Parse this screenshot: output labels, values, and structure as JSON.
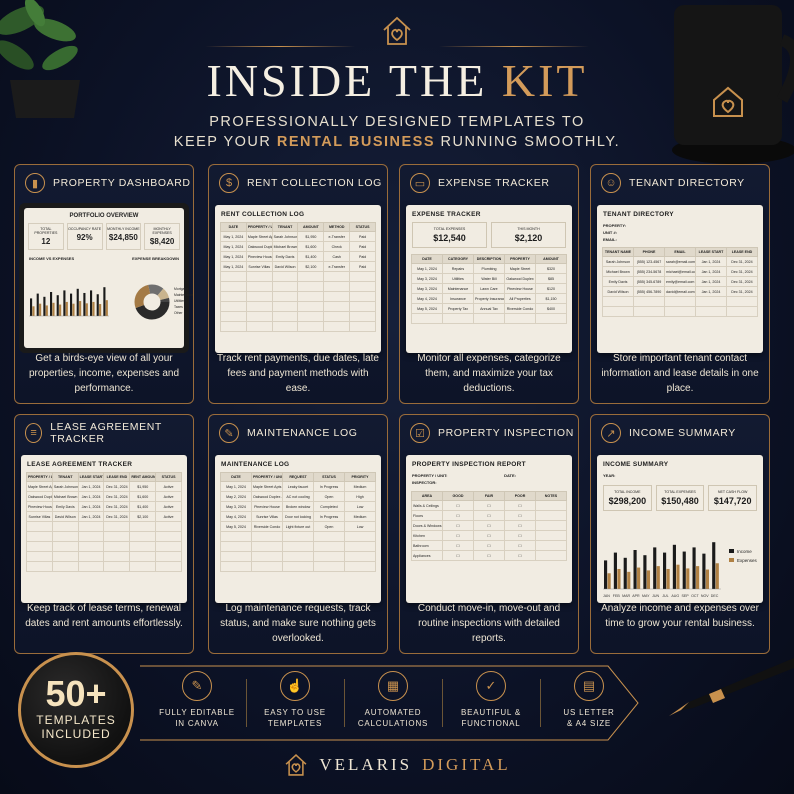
{
  "header": {
    "title_part1": "INSIDE THE ",
    "title_part2": "KIT",
    "subtitle_line1": "PROFESSIONALLY DESIGNED TEMPLATES TO",
    "subtitle_pre": "KEEP YOUR ",
    "subtitle_highlight": "RENTAL BUSINESS",
    "subtitle_post": " RUNNING SMOOTHLY."
  },
  "colors": {
    "background": "#0c1226",
    "accent": "#c8914e",
    "paper": "#f1ece2"
  },
  "cards": {
    "property_dashboard": {
      "title": "PROPERTY DASHBOARD",
      "icon": "bar-chart-icon",
      "paper_title": "PORTFOLIO OVERVIEW",
      "kpis": [
        {
          "label": "TOTAL PROPERTIES",
          "value": "12"
        },
        {
          "label": "OCCUPANCY RATE",
          "value": "92%"
        },
        {
          "label": "MONTHLY INCOME",
          "value": "$24,850"
        },
        {
          "label": "MONTHLY EXPENSES",
          "value": "$8,420"
        }
      ],
      "chart_left_title": "INCOME VS EXPENSES",
      "chart_right_title": "EXPENSE BREAKDOWN",
      "breakdown_legend": [
        "Mortgage",
        "Maintenance",
        "Utilities",
        "Taxes",
        "Other"
      ],
      "desc": "Get a birds-eye view of all your properties, income, expenses and performance."
    },
    "rent_collection": {
      "title": "RENT COLLECTION LOG",
      "icon": "dollar-icon",
      "paper_title": "RENT COLLECTION LOG",
      "columns": [
        "DATE",
        "PROPERTY / UNIT",
        "TENANT",
        "AMOUNT",
        "METHOD",
        "STATUS"
      ],
      "rows": [
        [
          "May 1, 2024",
          "Maple Street Apts - 1",
          "Sarah Johnson",
          "$1,950",
          "e-Transfer",
          "Paid"
        ],
        [
          "May 1, 2024",
          "Oakwood Duplex - 2",
          "Michael Brown",
          "$1,600",
          "Check",
          "Paid"
        ],
        [
          "May 1, 2024",
          "Pineview House",
          "Emily Davis",
          "$1,400",
          "Cash",
          "Paid"
        ],
        [
          "May 1, 2024",
          "Sunrise Villas",
          "David Wilson",
          "$2,100",
          "e-Transfer",
          "Paid"
        ]
      ],
      "desc": "Track rent payments, due dates, late fees and payment methods with ease."
    },
    "expense_tracker": {
      "title": "EXPENSE TRACKER",
      "icon": "folder-icon",
      "paper_title": "EXPENSE TRACKER",
      "total_label": "TOTAL EXPENSES",
      "total_value": "$12,540",
      "month_label": "THIS MONTH",
      "month_value": "$2,120",
      "columns": [
        "DATE",
        "CATEGORY",
        "DESCRIPTION",
        "PROPERTY",
        "AMOUNT"
      ],
      "rows": [
        [
          "May 1, 2024",
          "Repairs",
          "Plumbing",
          "Maple Street",
          "$320"
        ],
        [
          "May 3, 2024",
          "Utilities",
          "Water Bill",
          "Oakwood Duplex",
          "$85"
        ],
        [
          "May 3, 2024",
          "Maintenance",
          "Lawn Care",
          "Pineview House",
          "$120"
        ],
        [
          "May 4, 2024",
          "Insurance",
          "Property Insurance",
          "All Properties",
          "$1,150"
        ],
        [
          "May 5, 2024",
          "Property Tax",
          "Annual Tax",
          "Riverside Condo",
          "$400"
        ]
      ],
      "desc": "Monitor all expenses, categorize them, and maximize your tax deductions."
    },
    "tenant_directory": {
      "title": "TENANT DIRECTORY",
      "icon": "people-icon",
      "paper_title": "TENANT DIRECTORY",
      "fields": [
        "PROPERTY:",
        "UNIT #:",
        "EMAIL:"
      ],
      "columns": [
        "TENANT NAME",
        "PHONE",
        "EMAIL",
        "LEASE START",
        "LEASE END"
      ],
      "rows": [
        [
          "Sarah Johnson",
          "(555) 123-4567",
          "sarah@email.com",
          "Jan 1, 2024",
          "Dec 31, 2024"
        ],
        [
          "Michael Brown",
          "(555) 234-5678",
          "michael@email.com",
          "Jan 1, 2024",
          "Dec 31, 2024"
        ],
        [
          "Emily Davis",
          "(555) 345-6789",
          "emily@email.com",
          "Jan 1, 2024",
          "Dec 31, 2024"
        ],
        [
          "David Wilson",
          "(555) 456-7890",
          "david@email.com",
          "Jan 1, 2024",
          "Dec 31, 2024"
        ]
      ],
      "desc": "Store important tenant contact information and lease details in one place."
    },
    "lease_agreement": {
      "title": "LEASE AGREEMENT TRACKER",
      "icon": "document-icon",
      "paper_title": "LEASE AGREEMENT TRACKER",
      "columns": [
        "PROPERTY / UNIT",
        "TENANT",
        "LEASE START",
        "LEASE END",
        "RENT AMOUNT",
        "STATUS"
      ],
      "rows": [
        [
          "Maple Street Apts - 1",
          "Sarah Johnson",
          "Jan 1, 2024",
          "Dec 31, 2024",
          "$1,950",
          "Active"
        ],
        [
          "Oakwood Duplex - 2",
          "Michael Brown",
          "Jan 1, 2024",
          "Dec 31, 2024",
          "$1,600",
          "Active"
        ],
        [
          "Pineview House",
          "Emily Davis",
          "Jan 1, 2024",
          "Dec 31, 2024",
          "$1,400",
          "Active"
        ],
        [
          "Sunrise Villas",
          "David Wilson",
          "Jan 1, 2024",
          "Dec 31, 2024",
          "$2,100",
          "Active"
        ]
      ],
      "desc": "Keep track of lease terms, renewal dates and rent amounts effortlessly."
    },
    "maintenance_log": {
      "title": "MAINTENANCE LOG",
      "icon": "wrench-icon",
      "paper_title": "MAINTENANCE LOG",
      "columns": [
        "DATE",
        "PROPERTY / UNIT",
        "REQUEST",
        "STATUS",
        "PRIORITY"
      ],
      "rows": [
        [
          "May 1, 2024",
          "Maple Street Apts - 1",
          "Leaky faucet",
          "In Progress",
          "Medium"
        ],
        [
          "May 2, 2024",
          "Oakwood Duplex - 2",
          "AC not cooling",
          "Open",
          "High"
        ],
        [
          "May 3, 2024",
          "Pineview House",
          "Broken window",
          "Completed",
          "Low"
        ],
        [
          "May 4, 2024",
          "Sunrise Villas",
          "Door not locking",
          "In Progress",
          "Medium"
        ],
        [
          "May 5, 2024",
          "Riverside Condo",
          "Light fixture out",
          "Open",
          "Low"
        ]
      ],
      "desc": "Log maintenance requests, track status, and make sure nothing gets overlooked."
    },
    "property_inspection": {
      "title": "PROPERTY INSPECTION",
      "icon": "clipboard-icon",
      "paper_title": "PROPERTY INSPECTION REPORT",
      "field_property": "PROPERTY / UNIT:",
      "field_date": "DATE:",
      "field_inspector": "INSPECTOR:",
      "columns": [
        "AREA",
        "GOOD",
        "FAIR",
        "POOR",
        "NOTES"
      ],
      "areas": [
        "Walls & Ceilings",
        "Floors",
        "Doors & Windows",
        "Kitchen",
        "Bathroom",
        "Appliances"
      ],
      "desc": "Conduct move-in, move-out and routine inspections with detailed reports."
    },
    "income_summary": {
      "title": "INCOME SUMMARY",
      "icon": "trend-icon",
      "paper_title": "INCOME SUMMARY",
      "year_label": "YEAR:",
      "boxes": [
        {
          "label": "TOTAL INCOME",
          "value": "$298,200"
        },
        {
          "label": "TOTAL EXPENSES",
          "value": "$150,480"
        },
        {
          "label": "NET CASH FLOW",
          "value": "$147,720"
        }
      ],
      "months": [
        "JAN",
        "FEB",
        "MAR",
        "APR",
        "MAY",
        "JUN",
        "JUL",
        "AUG",
        "SEP",
        "OCT",
        "NOV",
        "DEC"
      ],
      "legend": [
        "Income",
        "Expenses"
      ],
      "desc": "Analyze income and expenses over time to grow your rental business."
    }
  },
  "badge": {
    "count": "50+",
    "line1": "TEMPLATES",
    "line2": "INCLUDED"
  },
  "features": [
    {
      "icon": "edit-icon",
      "line1": "FULLY EDITABLE",
      "line2": "IN CANVA"
    },
    {
      "icon": "pointer-icon",
      "line1": "EASY TO USE",
      "line2": "TEMPLATES"
    },
    {
      "icon": "calculator-icon",
      "line1": "AUTOMATED",
      "line2": "CALCULATIONS"
    },
    {
      "icon": "shield-check-icon",
      "line1": "BEAUTIFUL &",
      "line2": "FUNCTIONAL"
    },
    {
      "icon": "document-size-icon",
      "line1": "US LETTER",
      "line2": "& A4 SIZE"
    }
  ],
  "brand": {
    "name1": "VELARIS",
    "name2": "DIGITAL"
  }
}
